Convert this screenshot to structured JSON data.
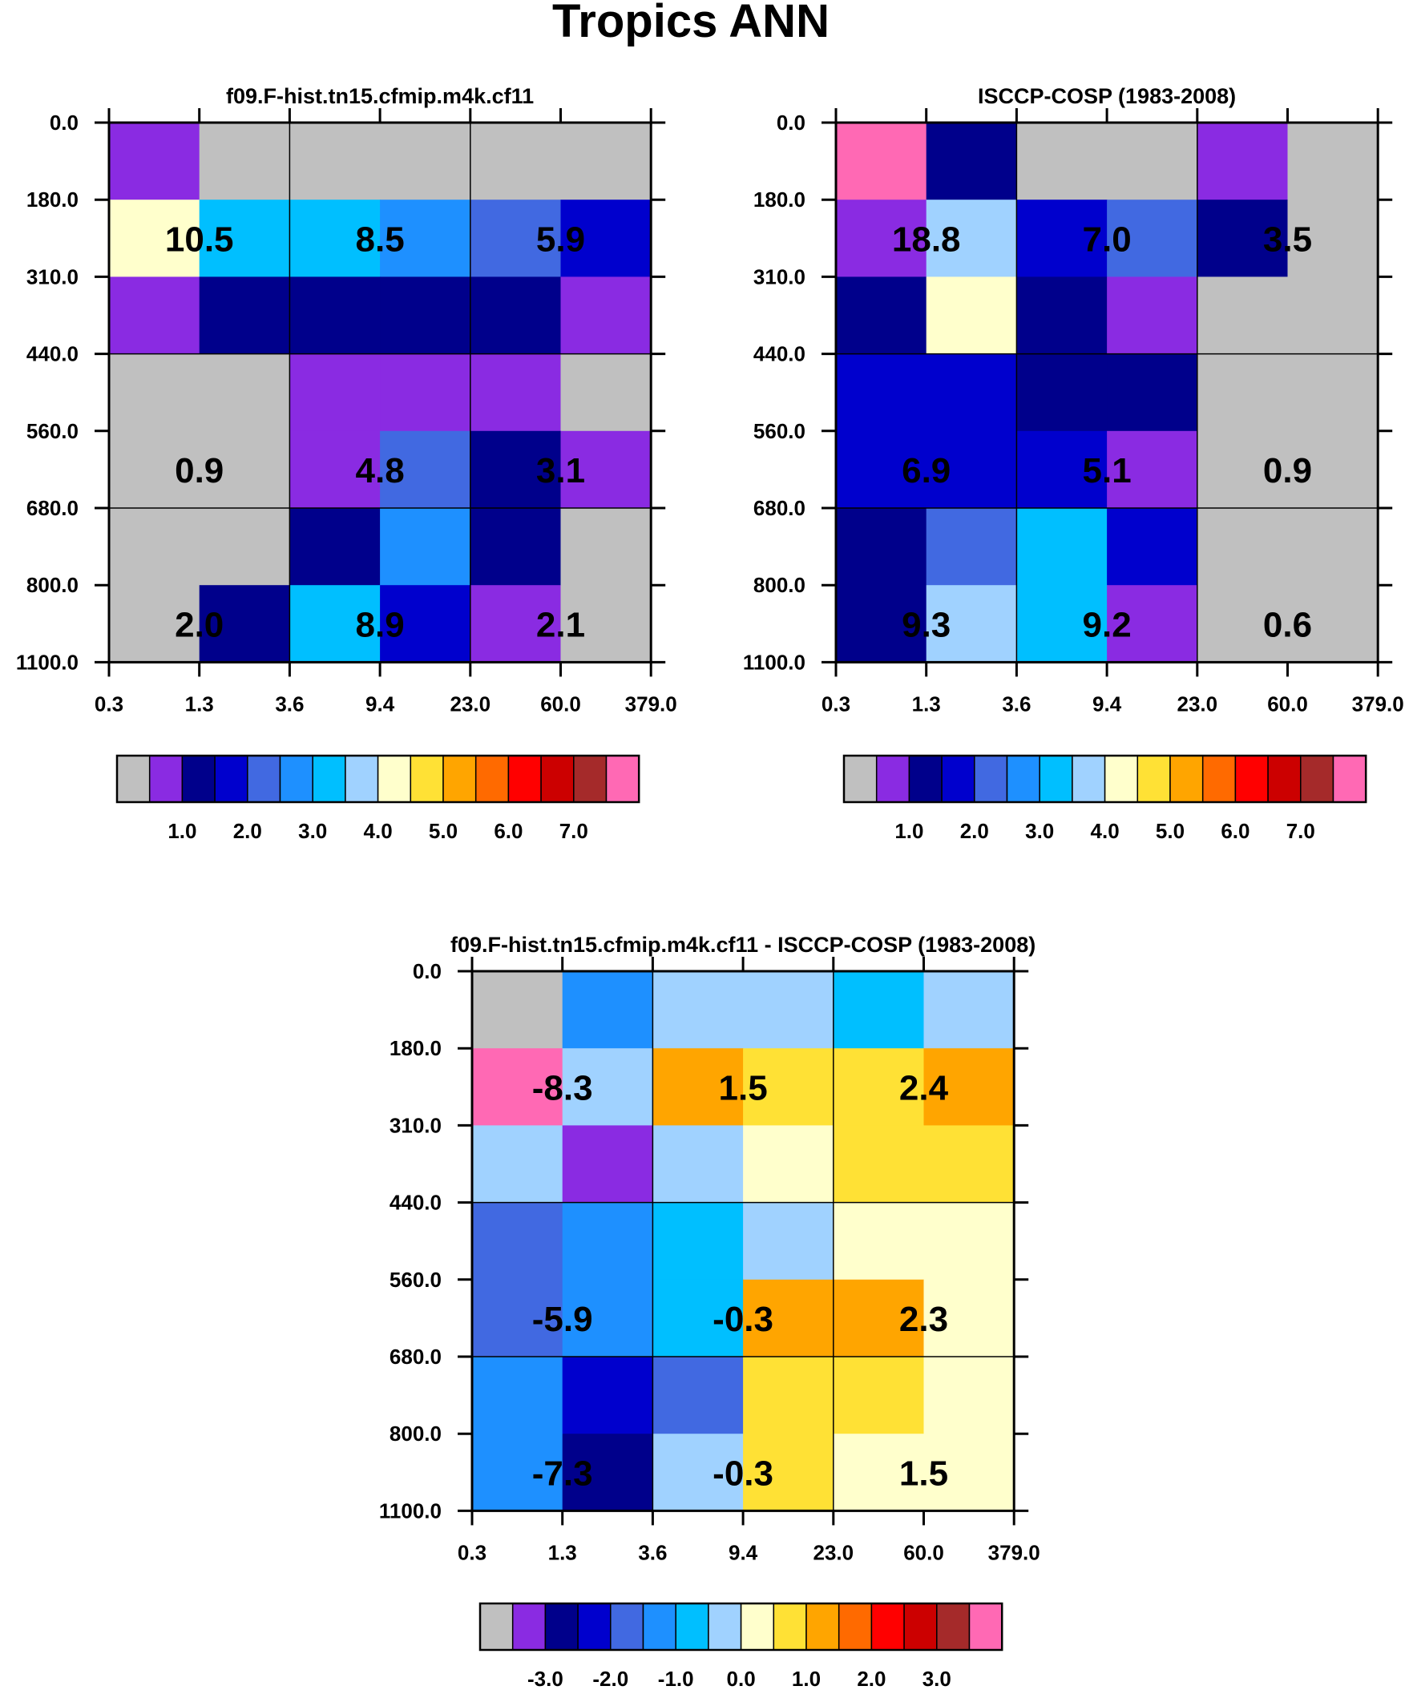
{
  "title": "Tropics ANN",
  "colorbar_colors": [
    "#c0c0c0",
    "#8a2be2",
    "#00008b",
    "#0000cd",
    "#4169e1",
    "#1e90ff",
    "#00bfff",
    "#a0d2ff",
    "#ffffcc",
    "#ffe135",
    "#ffa500",
    "#ff6a00",
    "#ff0000",
    "#cc0000",
    "#a52a2a",
    "#ff69b4"
  ],
  "chart_data": [
    {
      "type": "heatmap",
      "title": "f09.F-hist.tn15.cfmip.m4k.cf11",
      "x_ticks": [
        "0.3",
        "1.3",
        "3.6",
        "9.4",
        "23.0",
        "60.0",
        "379.0"
      ],
      "y_ticks": [
        "0.0",
        "180.0",
        "310.0",
        "440.0",
        "560.0",
        "680.0",
        "800.0",
        "1100.0"
      ],
      "cells": [
        [
          1,
          0,
          0,
          0,
          0,
          0
        ],
        [
          8,
          6,
          6,
          5,
          4,
          3
        ],
        [
          1,
          2,
          2,
          2,
          2,
          1
        ],
        [
          0,
          0,
          1,
          1,
          1,
          0
        ],
        [
          0,
          0,
          1,
          4,
          2,
          1
        ],
        [
          0,
          0,
          2,
          5,
          2,
          0
        ],
        [
          0,
          2,
          6,
          3,
          1,
          0
        ]
      ],
      "labels": [
        {
          "col": 1,
          "row": 1,
          "text": "10.5"
        },
        {
          "col": 3,
          "row": 1,
          "text": "8.5"
        },
        {
          "col": 5,
          "row": 1,
          "text": "5.9"
        },
        {
          "col": 1,
          "row": 4,
          "text": "0.9"
        },
        {
          "col": 3,
          "row": 4,
          "text": "4.8"
        },
        {
          "col": 5,
          "row": 4,
          "text": "3.1"
        },
        {
          "col": 1,
          "row": 6,
          "text": "2.0"
        },
        {
          "col": 3,
          "row": 6,
          "text": "8.9"
        },
        {
          "col": 5,
          "row": 6,
          "text": "2.1"
        }
      ],
      "colorbar_labels": [
        "1.0",
        "2.0",
        "3.0",
        "4.0",
        "5.0",
        "6.0",
        "7.0"
      ]
    },
    {
      "type": "heatmap",
      "title": "ISCCP-COSP (1983-2008)",
      "x_ticks": [
        "0.3",
        "1.3",
        "3.6",
        "9.4",
        "23.0",
        "60.0",
        "379.0"
      ],
      "y_ticks": [
        "0.0",
        "180.0",
        "310.0",
        "440.0",
        "560.0",
        "680.0",
        "800.0",
        "1100.0"
      ],
      "cells": [
        [
          15,
          2,
          0,
          0,
          1,
          0
        ],
        [
          1,
          7,
          3,
          4,
          2,
          0
        ],
        [
          2,
          8,
          2,
          1,
          0,
          0
        ],
        [
          3,
          3,
          2,
          2,
          0,
          0
        ],
        [
          3,
          3,
          3,
          1,
          0,
          0
        ],
        [
          2,
          4,
          6,
          3,
          0,
          0
        ],
        [
          2,
          7,
          6,
          1,
          0,
          0
        ]
      ],
      "labels": [
        {
          "col": 1,
          "row": 1,
          "text": "18.8"
        },
        {
          "col": 3,
          "row": 1,
          "text": "7.0"
        },
        {
          "col": 5,
          "row": 1,
          "text": "3.5"
        },
        {
          "col": 1,
          "row": 4,
          "text": "6.9"
        },
        {
          "col": 3,
          "row": 4,
          "text": "5.1"
        },
        {
          "col": 5,
          "row": 4,
          "text": "0.9"
        },
        {
          "col": 1,
          "row": 6,
          "text": "9.3"
        },
        {
          "col": 3,
          "row": 6,
          "text": "9.2"
        },
        {
          "col": 5,
          "row": 6,
          "text": "0.6"
        }
      ],
      "colorbar_labels": [
        "1.0",
        "2.0",
        "3.0",
        "4.0",
        "5.0",
        "6.0",
        "7.0"
      ]
    },
    {
      "type": "heatmap",
      "title": "f09.F-hist.tn15.cfmip.m4k.cf11 - ISCCP-COSP (1983-2008)",
      "x_ticks": [
        "0.3",
        "1.3",
        "3.6",
        "9.4",
        "23.0",
        "60.0",
        "379.0"
      ],
      "y_ticks": [
        "0.0",
        "180.0",
        "310.0",
        "440.0",
        "560.0",
        "680.0",
        "800.0",
        "1100.0"
      ],
      "cells": [
        [
          0,
          5,
          7,
          7,
          6,
          7
        ],
        [
          15,
          7,
          10,
          9,
          9,
          10
        ],
        [
          7,
          1,
          7,
          8,
          9,
          9
        ],
        [
          4,
          5,
          6,
          7,
          8,
          8
        ],
        [
          4,
          5,
          6,
          10,
          10,
          8
        ],
        [
          5,
          3,
          4,
          9,
          9,
          8
        ],
        [
          5,
          2,
          7,
          9,
          8,
          8
        ]
      ],
      "labels": [
        {
          "col": 1,
          "row": 1,
          "text": "-8.3"
        },
        {
          "col": 3,
          "row": 1,
          "text": "1.5"
        },
        {
          "col": 5,
          "row": 1,
          "text": "2.4"
        },
        {
          "col": 1,
          "row": 4,
          "text": "-5.9"
        },
        {
          "col": 3,
          "row": 4,
          "text": "-0.3"
        },
        {
          "col": 5,
          "row": 4,
          "text": "2.3"
        },
        {
          "col": 1,
          "row": 6,
          "text": "-7.3"
        },
        {
          "col": 3,
          "row": 6,
          "text": "-0.3"
        },
        {
          "col": 5,
          "row": 6,
          "text": "1.5"
        }
      ],
      "colorbar_labels": [
        "-3.0",
        "-2.0",
        "-1.0",
        "0.0",
        "1.0",
        "2.0",
        "3.0"
      ]
    }
  ]
}
